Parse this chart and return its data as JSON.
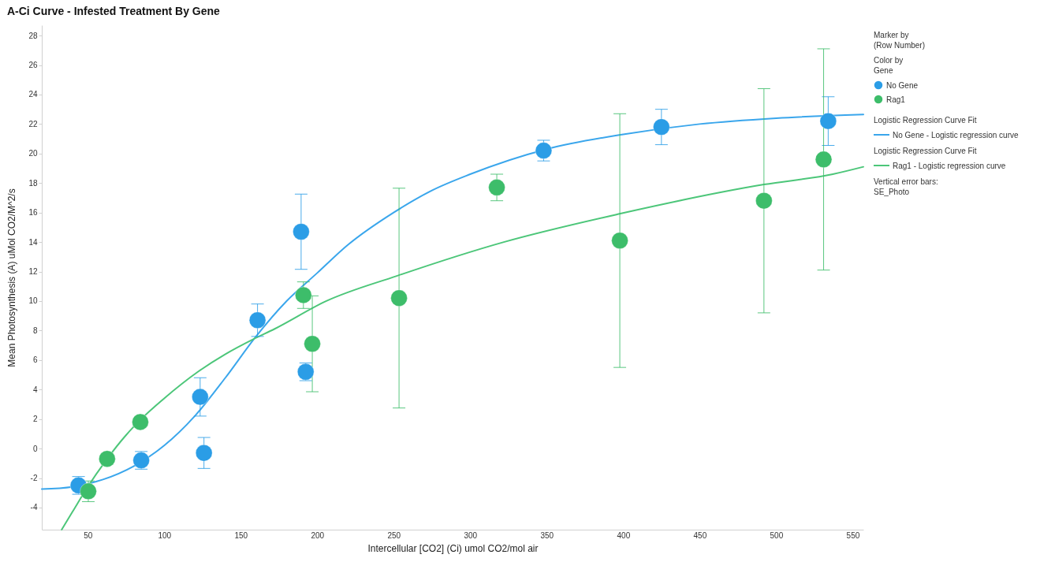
{
  "chart_data": {
    "type": "scatter",
    "title": "A-Ci Curve - Infested Treatment By Gene",
    "xlabel": "Intercellular [CO2] (Ci) umol CO2/mol air",
    "ylabel": "Mean Photosynthesis (A) uMol CO2/M^2/s",
    "legend_title": "Color by\nGene",
    "legend": "right",
    "line_style": "solid",
    "annotations": [
      "Marker by\n(Row Number)",
      "Logistic Regression Curve Fit",
      "Logistic Regression Curve Fit",
      "Vertical error bars:\nSE_Photo"
    ],
    "xlim": [
      20,
      557
    ],
    "ylim": [
      -5.5,
      28.7
    ],
    "xticks": [
      50,
      100,
      150,
      200,
      250,
      300,
      350,
      400,
      450,
      500,
      550
    ],
    "yticks": [
      -4,
      -2,
      0,
      2,
      4,
      6,
      8,
      10,
      12,
      14,
      16,
      18,
      20,
      22,
      24,
      26,
      28
    ],
    "series": [
      {
        "name": "No Gene",
        "marker": "circle",
        "color": "#2b9de6",
        "x": [
          44,
          85,
          123.5,
          126,
          161,
          189.5,
          192.5,
          348,
          425,
          534
        ],
        "values": [
          -2.5,
          -0.8,
          3.5,
          -0.3,
          8.7,
          14.7,
          5.2,
          20.2,
          21.8,
          22.2
        ],
        "errors": [
          0.6,
          0.6,
          1.3,
          1.05,
          1.1,
          2.55,
          0.6,
          0.7,
          1.2,
          1.65
        ]
      },
      {
        "name": "Rag1",
        "marker": "circle",
        "color": "#3dbd6a",
        "x": [
          50.4,
          62.7,
          84.4,
          191,
          196.8,
          253.5,
          317.4,
          397.8,
          492,
          531
        ],
        "values": [
          -2.9,
          -0.7,
          1.8,
          10.4,
          7.1,
          10.2,
          17.7,
          14.1,
          16.8,
          19.6
        ],
        "errors": [
          0.7,
          0.35,
          null,
          0.9,
          3.25,
          7.45,
          0.9,
          8.6,
          7.6,
          7.5
        ]
      },
      {
        "name": "No Gene - Logistic regression curve",
        "type": "line",
        "color": "#3aa6ec",
        "x": [
          20,
          40,
          60,
          80,
          100,
          120,
          140,
          160,
          180,
          200,
          220,
          250,
          275,
          300,
          350,
          400,
          450,
          500,
          557
        ],
        "values": [
          -2.75,
          -2.6,
          -2.1,
          -1.2,
          0.2,
          2.2,
          4.8,
          7.6,
          10.0,
          11.9,
          13.8,
          16.0,
          17.5,
          18.6,
          20.3,
          21.3,
          22.0,
          22.4,
          22.65
        ]
      },
      {
        "name": "Rag1 - Logistic regression curve",
        "type": "line",
        "color": "#4cc679",
        "x": [
          33,
          40,
          50,
          62,
          75,
          85,
          100,
          122,
          140,
          158,
          172,
          206,
          252,
          322,
          397,
          492,
          537,
          557
        ],
        "values": [
          -5.5,
          -4.3,
          -2.6,
          -0.8,
          0.9,
          2.0,
          3.4,
          5.2,
          6.4,
          7.4,
          8.1,
          10.0,
          11.7,
          14.0,
          15.9,
          17.9,
          18.6,
          19.1
        ]
      }
    ]
  }
}
